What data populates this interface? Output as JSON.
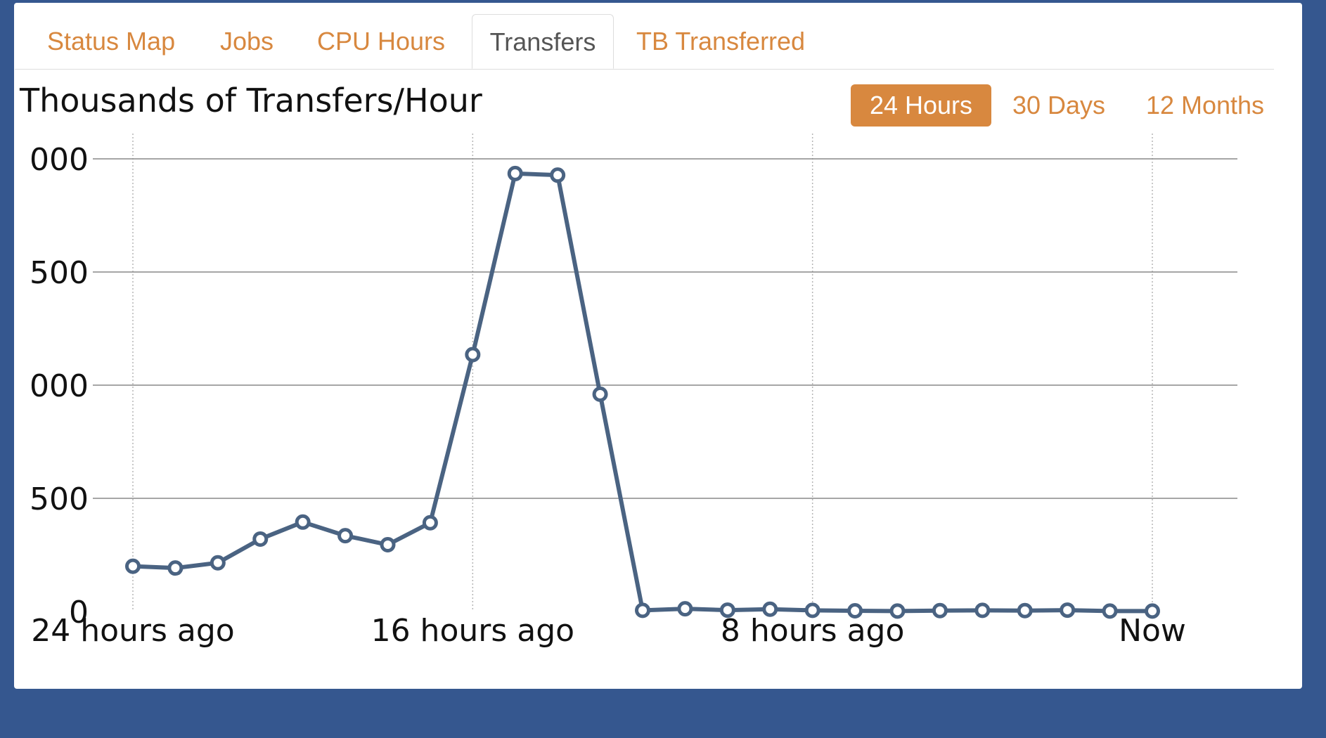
{
  "tabs": [
    {
      "label": "Status Map",
      "active": false
    },
    {
      "label": "Jobs",
      "active": false
    },
    {
      "label": "CPU Hours",
      "active": false
    },
    {
      "label": "Transfers",
      "active": true
    },
    {
      "label": "TB Transferred",
      "active": false
    }
  ],
  "ranges": [
    {
      "label": "24 Hours",
      "active": true
    },
    {
      "label": "30 Days",
      "active": false
    },
    {
      "label": "12 Months",
      "active": false
    }
  ],
  "colors": {
    "background": "#35578f",
    "accent": "#d8883f",
    "line": "#4a6382"
  },
  "chart_data": {
    "type": "line",
    "title": "Thousands of Transfers/Hour",
    "xlabel": "",
    "ylabel": "",
    "x_tick_labels": [
      "24 hours ago",
      "16 hours ago",
      "8 hours ago",
      "Now"
    ],
    "y_tick_labels": [
      "0",
      "500",
      "000",
      "500",
      "000"
    ],
    "ylim": [
      0,
      2000
    ],
    "grid": {
      "horizontal": true,
      "vertical": true
    },
    "series": [
      {
        "values": [
          200,
          192,
          215,
          320,
          395,
          335,
          295,
          392,
          1135,
          1935,
          1928,
          960,
          5,
          12,
          6,
          10,
          5,
          3,
          2,
          4,
          5,
          4,
          6,
          2,
          2
        ]
      }
    ]
  }
}
